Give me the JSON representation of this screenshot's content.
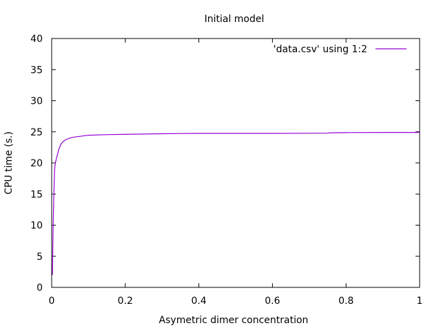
{
  "chart_data": {
    "type": "line",
    "title": "Initial model",
    "xlabel": "Asymetric dimer concentration",
    "ylabel": "CPU time (s.)",
    "xlim": [
      0,
      1
    ],
    "ylim": [
      0,
      40
    ],
    "x_ticks": [
      0,
      0.2,
      0.4,
      0.6,
      0.8,
      1
    ],
    "x_tick_labels": [
      "0",
      "0.2",
      "0.4",
      "0.6",
      "0.8",
      "1"
    ],
    "y_ticks": [
      0,
      5,
      10,
      15,
      20,
      25,
      30,
      35,
      40
    ],
    "y_tick_labels": [
      "0",
      "5",
      "10",
      "15",
      "20",
      "25",
      "30",
      "35",
      "40"
    ],
    "grid": false,
    "legend_position": "top-right",
    "series": [
      {
        "name": "'data.csv' using 1:2",
        "color": "#9400d3",
        "x": [
          0.002,
          0.004,
          0.006,
          0.008,
          0.01,
          0.015,
          0.02,
          0.025,
          0.03,
          0.04,
          0.05,
          0.06,
          0.08,
          0.1,
          0.15,
          0.2,
          0.3,
          0.4,
          0.5,
          0.6,
          0.7,
          0.75,
          0.76,
          0.8,
          0.9,
          1.0
        ],
        "y": [
          2.0,
          10.0,
          15.0,
          19.0,
          20.0,
          21.2,
          22.3,
          23.0,
          23.4,
          23.8,
          24.0,
          24.15,
          24.3,
          24.45,
          24.55,
          24.6,
          24.7,
          24.75,
          24.75,
          24.75,
          24.77,
          24.8,
          24.85,
          24.88,
          24.9,
          24.9
        ]
      }
    ]
  }
}
